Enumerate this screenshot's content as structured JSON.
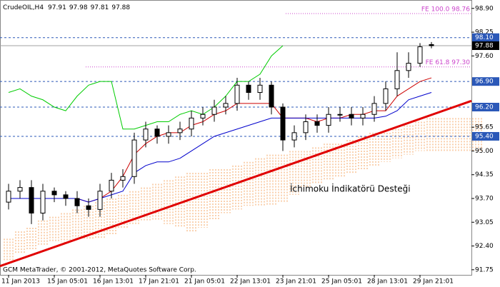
{
  "chart_data": {
    "type": "candlestick",
    "symbol": "CrudeOIL,H4",
    "annotation": "İchimoku İndikatörü Desteği",
    "footer": "GCM MetaTrader, © 2001-2012, MetaQuotes Software Corp.",
    "categories": [
      "11 Jan 2013",
      null,
      null,
      null,
      "15 Jan 05:01",
      null,
      null,
      null,
      "16 Jan 13:01",
      null,
      null,
      null,
      "17 Jan 21:01",
      null,
      null,
      null,
      "21 Jan 05:01",
      null,
      null,
      null,
      "22 Jan 13:01",
      null,
      null,
      null,
      "23 Jan 21:01",
      null,
      null,
      null,
      "25 Jan 05:01",
      null,
      null,
      null,
      "28 Jan 13:01",
      null,
      null,
      null,
      "29 Jan 21:01",
      null,
      null,
      null,
      null,
      null
    ],
    "open": [
      93.6,
      93.9,
      94.0,
      93.3,
      93.9,
      93.8,
      93.7,
      93.5,
      93.4,
      93.9,
      94.2,
      94.3,
      95.3,
      95.6,
      95.4,
      95.5,
      95.6,
      95.9,
      96.0,
      96.2,
      96.3,
      96.8,
      96.6,
      96.8,
      96.2,
      95.3,
      95.5,
      95.8,
      95.7,
      96.0,
      96.0,
      95.9,
      96.0,
      96.3,
      96.7,
      97.2,
      97.4,
      97.91,
      null,
      null,
      null,
      null
    ],
    "high": [
      94.1,
      94.2,
      94.2,
      94.1,
      94.0,
      93.9,
      93.9,
      93.7,
      94.1,
      94.4,
      94.5,
      95.5,
      95.8,
      95.7,
      95.7,
      95.8,
      96.1,
      96.2,
      96.4,
      96.5,
      97.0,
      96.9,
      97.0,
      96.9,
      96.3,
      95.7,
      96.0,
      96.0,
      96.2,
      96.2,
      96.2,
      96.2,
      96.5,
      96.9,
      97.7,
      97.7,
      97.95,
      97.98,
      null,
      null,
      null,
      null
    ],
    "low": [
      93.4,
      93.7,
      93.0,
      93.1,
      93.6,
      93.5,
      93.3,
      93.2,
      93.2,
      93.7,
      94.0,
      94.1,
      95.1,
      95.2,
      95.2,
      95.3,
      95.4,
      95.7,
      95.8,
      96.0,
      96.1,
      96.4,
      96.4,
      96.0,
      95.0,
      95.1,
      95.3,
      95.5,
      95.5,
      95.8,
      95.7,
      95.7,
      95.8,
      96.1,
      96.5,
      97.0,
      97.3,
      97.81,
      null,
      null,
      null,
      null
    ],
    "close": [
      93.9,
      94.0,
      93.3,
      93.9,
      93.8,
      93.7,
      93.5,
      93.4,
      93.9,
      94.2,
      94.3,
      95.3,
      95.6,
      95.4,
      95.5,
      95.6,
      95.9,
      96.0,
      96.2,
      96.3,
      96.8,
      96.6,
      96.8,
      96.2,
      95.3,
      95.5,
      95.8,
      95.7,
      96.0,
      96.0,
      95.9,
      96.0,
      96.3,
      96.7,
      97.2,
      97.4,
      97.85,
      97.88,
      null,
      null,
      null,
      null
    ],
    "lines": [
      {
        "color": "#00cc00",
        "values": [
          96.6,
          96.7,
          96.5,
          96.4,
          96.2,
          96.1,
          96.5,
          96.8,
          96.9,
          96.9,
          95.6,
          95.6,
          95.7,
          95.8,
          95.8,
          96.0,
          96.1,
          96.0,
          96.2,
          96.5,
          96.9,
          96.9,
          97.1,
          97.6,
          97.88,
          null,
          null,
          null,
          null,
          null,
          null,
          null,
          null,
          null,
          null,
          null,
          null,
          null,
          null,
          null,
          null,
          null
        ]
      },
      {
        "color": "#cc0000",
        "values": [
          93.7,
          93.7,
          93.7,
          93.7,
          93.7,
          93.7,
          93.7,
          93.6,
          93.7,
          93.9,
          94.3,
          94.9,
          95.2,
          95.4,
          95.5,
          95.5,
          95.7,
          95.8,
          96.0,
          96.1,
          96.3,
          96.3,
          96.3,
          96.3,
          95.9,
          95.9,
          95.9,
          95.8,
          95.9,
          95.9,
          96.0,
          96.0,
          96.1,
          96.1,
          96.5,
          96.7,
          96.9,
          97.0,
          null,
          null,
          null,
          null
        ]
      },
      {
        "color": "#0000cc",
        "values": [
          93.7,
          93.7,
          93.7,
          93.7,
          93.7,
          93.7,
          93.7,
          93.6,
          93.7,
          93.8,
          93.9,
          94.4,
          94.6,
          94.7,
          94.7,
          94.8,
          95.0,
          95.2,
          95.4,
          95.5,
          95.6,
          95.7,
          95.8,
          95.9,
          95.9,
          95.9,
          95.9,
          95.9,
          95.9,
          95.9,
          95.9,
          95.9,
          95.9,
          95.95,
          96.1,
          96.4,
          96.5,
          96.6,
          null,
          null,
          null,
          null
        ]
      }
    ],
    "cloud": {
      "color": "#f4a460",
      "upper": [
        92.6,
        92.8,
        92.9,
        93.1,
        93.2,
        93.3,
        93.4,
        93.5,
        93.6,
        93.7,
        93.8,
        93.9,
        94.0,
        94.1,
        94.2,
        94.3,
        94.4,
        94.4,
        94.5,
        94.5,
        94.6,
        94.7,
        94.8,
        94.9,
        94.9,
        95.0,
        95.0,
        95.1,
        95.2,
        95.2,
        95.3,
        95.4,
        95.5,
        95.5,
        95.6,
        95.7,
        95.8,
        95.9,
        95.9,
        95.9,
        95.9,
        95.9
      ],
      "lower": [
        92.0,
        92.2,
        92.3,
        92.4,
        92.5,
        92.5,
        92.6,
        92.6,
        92.6,
        92.7,
        92.9,
        93.0,
        93.1,
        93.1,
        93.0,
        92.9,
        92.8,
        92.9,
        93.1,
        93.3,
        93.4,
        93.5,
        93.5,
        93.5,
        93.6,
        93.8,
        94.0,
        94.1,
        94.2,
        94.3,
        94.4,
        94.5,
        94.6,
        94.7,
        94.8,
        94.9,
        95.0,
        95.0,
        95.0,
        95.0,
        95.0,
        95.0
      ]
    },
    "trendline": {
      "color": "#e00000",
      "points": [
        [
          -0.75,
          91.85
        ],
        [
          40.5,
          96.37
        ]
      ]
    },
    "levels": [
      {
        "value": 98.1,
        "label": "98.10"
      },
      {
        "value": 96.9,
        "label": "96.90"
      },
      {
        "value": 96.2,
        "label": "96.20"
      },
      {
        "value": 95.4,
        "label": "95.40"
      }
    ],
    "level_color": "#2b58b8",
    "fibo": [
      {
        "value": 98.76,
        "label": "FE 100.0 98.76"
      },
      {
        "value": 97.3,
        "label": "FE 61.8 97.30"
      }
    ],
    "fibo_color": "#cc44cc",
    "ylim": [
      91.61,
      99.13
    ],
    "yticks": [
      {
        "value": 98.9,
        "label": "98.90"
      },
      98.25,
      {
        "value": 97.6,
        "label": "97.60"
      },
      95.65,
      {
        "value": 95,
        "label": "95.00"
      },
      94.35,
      {
        "value": 93.7,
        "label": "93.70"
      },
      93.05,
      {
        "value": 92.4,
        "label": "92.40"
      },
      91.75
    ]
  }
}
